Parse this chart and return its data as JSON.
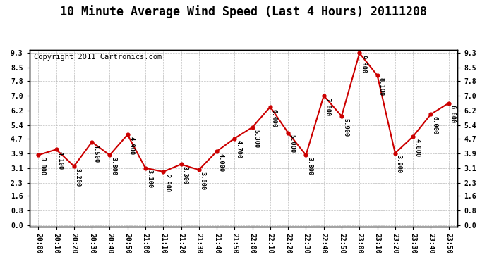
{
  "title": "10 Minute Average Wind Speed (Last 4 Hours) 20111208",
  "copyright": "Copyright 2011 Cartronics.com",
  "x_labels": [
    "20:00",
    "20:10",
    "20:20",
    "20:30",
    "20:40",
    "20:50",
    "21:00",
    "21:10",
    "21:20",
    "21:30",
    "21:40",
    "21:50",
    "22:00",
    "22:10",
    "22:20",
    "22:30",
    "22:40",
    "22:50",
    "23:00",
    "23:10",
    "23:20",
    "23:30",
    "23:40",
    "23:50"
  ],
  "y_values": [
    3.8,
    4.1,
    3.2,
    4.5,
    3.8,
    4.9,
    3.1,
    2.9,
    3.3,
    3.0,
    4.0,
    4.7,
    5.3,
    6.4,
    5.0,
    3.8,
    7.0,
    5.9,
    9.3,
    8.1,
    3.9,
    4.8,
    6.0,
    6.6
  ],
  "line_color": "#cc0000",
  "marker_color": "#cc0000",
  "background_color": "#ffffff",
  "grid_color": "#bbbbbb",
  "title_fontsize": 12,
  "copyright_fontsize": 7.5,
  "y_min": 0.0,
  "y_max": 9.3,
  "y_ticks": [
    0.0,
    0.8,
    1.6,
    2.3,
    3.1,
    3.9,
    4.7,
    5.4,
    6.2,
    7.0,
    7.8,
    8.5,
    9.3
  ]
}
